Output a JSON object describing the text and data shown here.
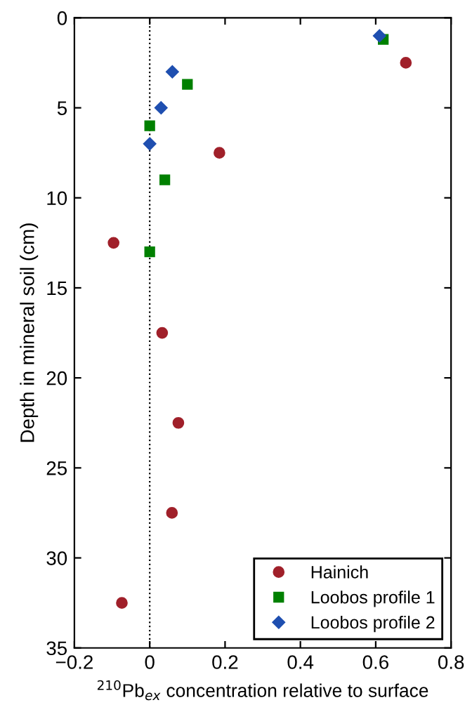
{
  "chart_data": {
    "type": "scatter",
    "xlabel": "$^{210}$Pb$_{ex}$ concentration relative to surface",
    "ylabel": "Depth in mineral soil (cm)",
    "xlim": [
      -0.2,
      0.8
    ],
    "xticks": [
      {
        "value": -0.2,
        "label": "−0.2"
      },
      0,
      0.2,
      0.4,
      0.6,
      {
        "value": 0.8,
        "label": "0.8"
      }
    ],
    "ylim": [
      35,
      0
    ],
    "yticks": [
      0,
      5,
      10,
      15,
      20,
      25,
      30,
      35
    ],
    "grid": false,
    "legend": "bottom right",
    "ref_lines": [
      {
        "axis": "x",
        "value": 0,
        "color": "#000000",
        "line_style": "dotted"
      }
    ],
    "series": [
      {
        "name": "Hainich",
        "color": "#a0202a",
        "marker": "circle",
        "x": [
          0.68,
          0.185,
          -0.096,
          0.033,
          0.076,
          0.059,
          -0.074
        ],
        "values": [
          2.5,
          7.5,
          12.5,
          17.5,
          22.5,
          27.5,
          32.5
        ]
      },
      {
        "name": "Loobos profile 1",
        "color": "#008000",
        "marker": "square",
        "x": [
          0.62,
          0.1,
          0,
          0.04,
          0
        ],
        "values": [
          1.2,
          3.7,
          6,
          9,
          13
        ]
      },
      {
        "name": "Loobos profile 2",
        "color": "#1f4fb0",
        "marker": "diamond",
        "x": [
          0.61,
          0.06,
          0.03,
          0
        ],
        "values": [
          1,
          3,
          5,
          7
        ]
      }
    ]
  }
}
